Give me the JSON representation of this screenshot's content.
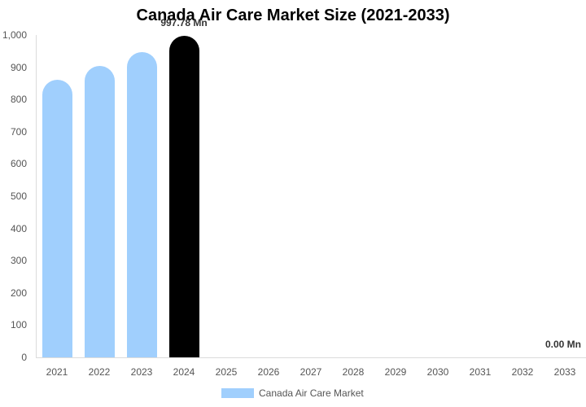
{
  "chart_data": {
    "type": "bar",
    "title": "Canada Air Care Market Size (2021-2033)",
    "xlabel": "",
    "ylabel": "",
    "ylim": [
      0,
      1000
    ],
    "yticks": [
      "0",
      "100",
      "200",
      "300",
      "400",
      "500",
      "600",
      "700",
      "800",
      "900",
      "1,000"
    ],
    "grid": false,
    "legend_position": "bottom",
    "categories": [
      "2021",
      "2022",
      "2023",
      "2024",
      "2025",
      "2026",
      "2027",
      "2028",
      "2029",
      "2030",
      "2031",
      "2032",
      "2033"
    ],
    "series": [
      {
        "name": "Canada Air Care Market",
        "values": [
          861,
          904,
          947,
          997.78,
          0,
          0,
          0,
          0,
          0,
          0,
          0,
          0,
          0
        ],
        "color": "#a0cffd",
        "highlight_color": "#000000",
        "highlight_index": 3
      }
    ],
    "annotations": [
      {
        "category": "2024",
        "text": "997.78 Mn"
      },
      {
        "category": "2033",
        "text": "0.00 Mn"
      }
    ]
  },
  "legend": {
    "label": "Canada Air Care Market"
  }
}
